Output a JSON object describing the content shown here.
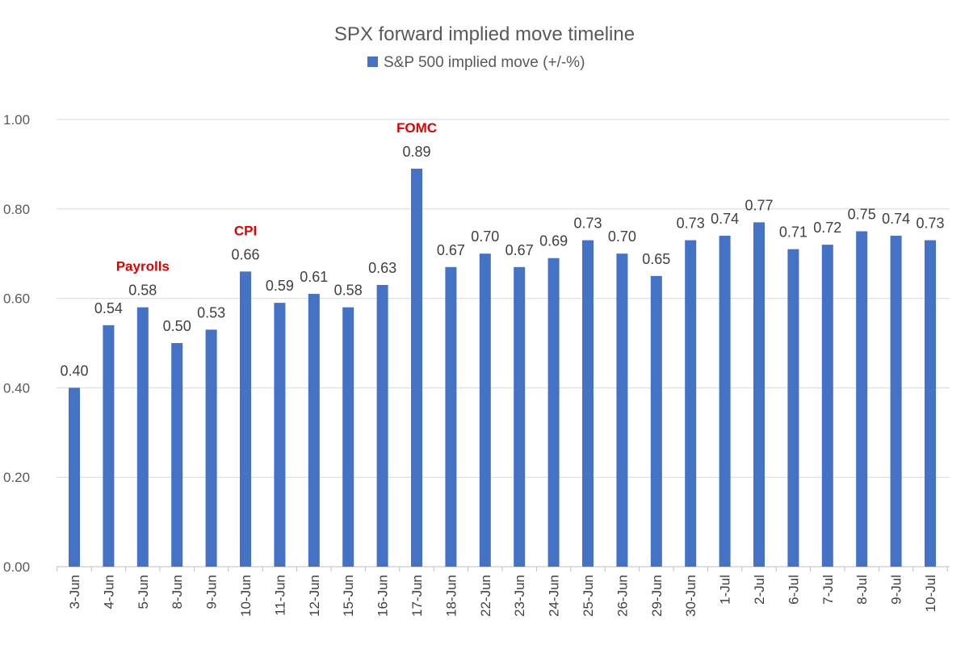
{
  "chart_data": {
    "type": "bar",
    "title": "SPX forward implied move timeline",
    "xlabel": "",
    "ylabel": "",
    "ylim": [
      0,
      1
    ],
    "yticks": [
      "0.00",
      "0.20",
      "0.40",
      "0.60",
      "0.80",
      "1.00"
    ],
    "grid": true,
    "legend_position": "top",
    "categories": [
      "3-Jun",
      "4-Jun",
      "5-Jun",
      "8-Jun",
      "9-Jun",
      "10-Jun",
      "11-Jun",
      "12-Jun",
      "15-Jun",
      "16-Jun",
      "17-Jun",
      "18-Jun",
      "22-Jun",
      "23-Jun",
      "24-Jun",
      "25-Jun",
      "26-Jun",
      "29-Jun",
      "30-Jun",
      "1-Jul",
      "2-Jul",
      "6-Jul",
      "7-Jul",
      "8-Jul",
      "9-Jul",
      "10-Jul"
    ],
    "series": [
      {
        "name": "S&P 500 implied move (+/-%)",
        "color": "#4472C4",
        "values": [
          0.4,
          0.54,
          0.58,
          0.5,
          0.53,
          0.66,
          0.59,
          0.61,
          0.58,
          0.63,
          0.89,
          0.67,
          0.7,
          0.67,
          0.69,
          0.73,
          0.7,
          0.65,
          0.73,
          0.74,
          0.77,
          0.71,
          0.72,
          0.75,
          0.74,
          0.73
        ],
        "labels": [
          "0.40",
          "0.54",
          "0.58",
          "0.50",
          "0.53",
          "0.66",
          "0.59",
          "0.61",
          "0.58",
          "0.63",
          "0.89",
          "0.67",
          "0.70",
          "0.67",
          "0.69",
          "0.73",
          "0.70",
          "0.65",
          "0.73",
          "0.74",
          "0.77",
          "0.71",
          "0.72",
          "0.75",
          "0.74",
          "0.73"
        ]
      }
    ],
    "annotations": [
      {
        "category": "5-Jun",
        "text": "Payrolls",
        "color": "#E00000"
      },
      {
        "category": "10-Jun",
        "text": "CPI",
        "color": "#E00000"
      },
      {
        "category": "17-Jun",
        "text": "FOMC",
        "color": "#E00000"
      }
    ]
  }
}
